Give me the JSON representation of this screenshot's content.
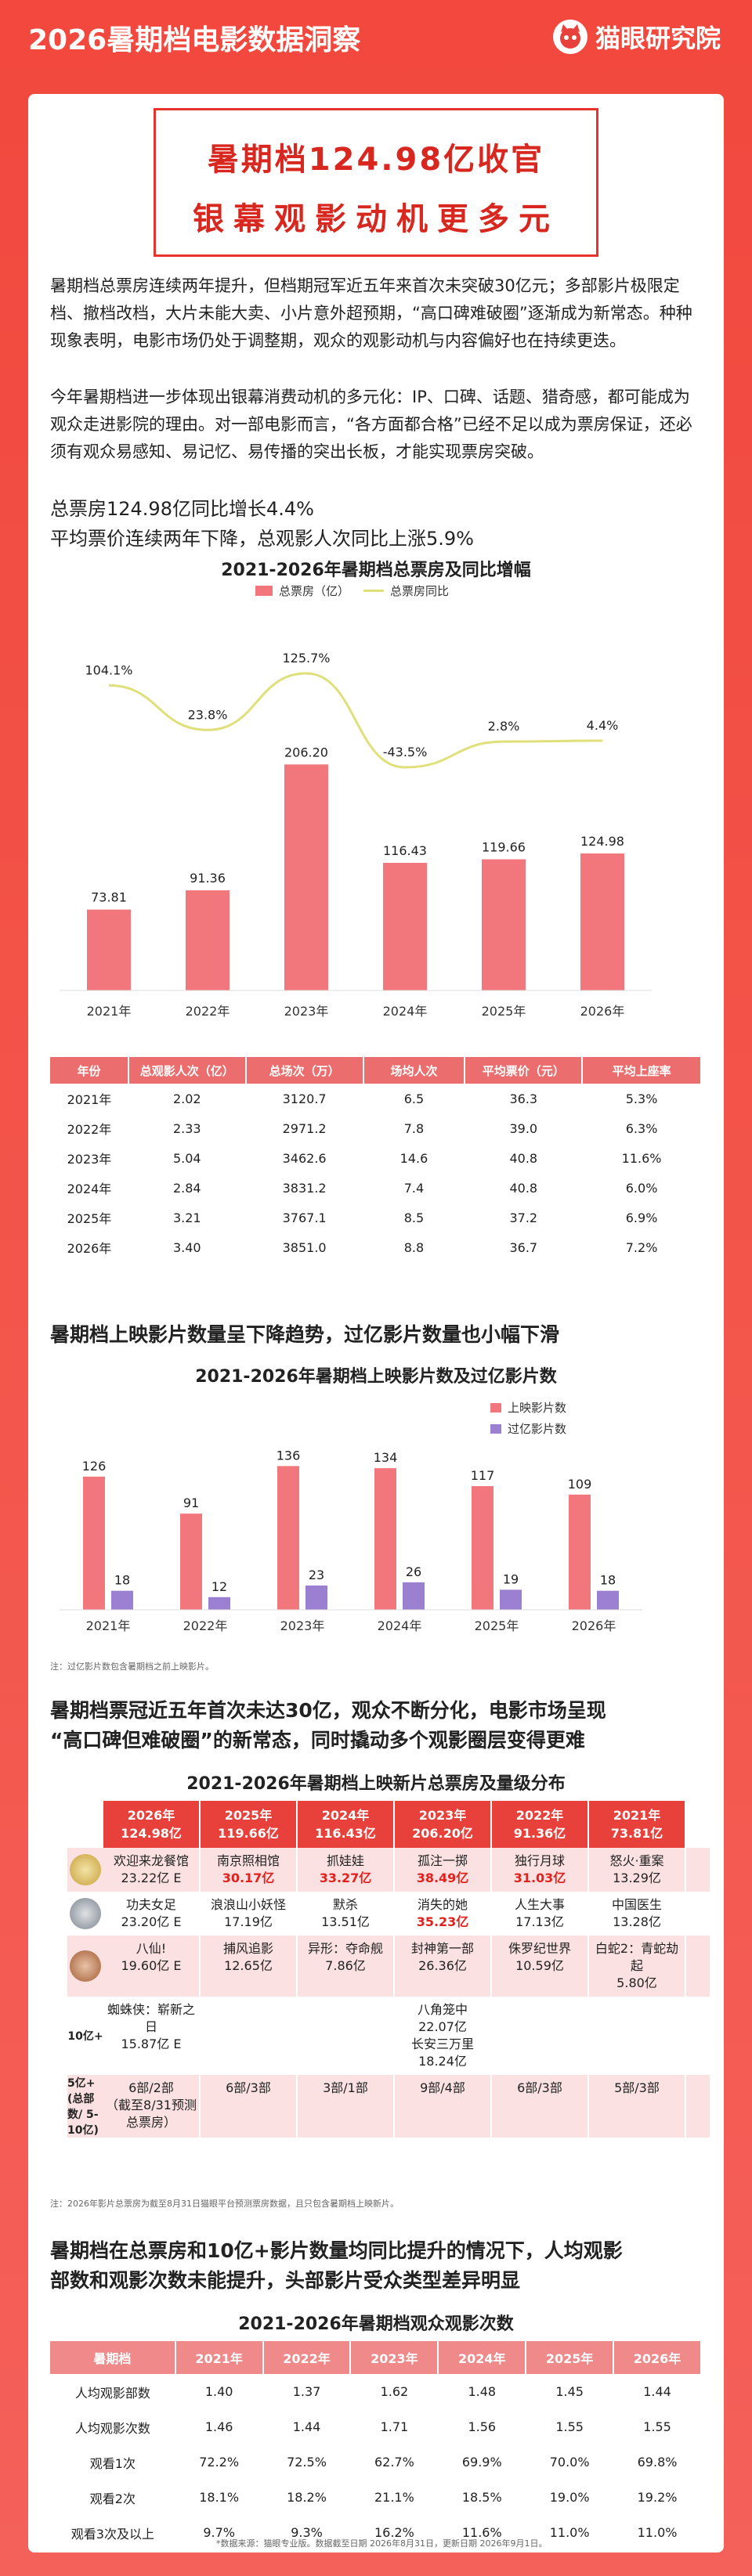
{
  "header": {
    "title": "2026暑期档电影数据洞察",
    "brand": "猫眼研究院"
  },
  "headline": {
    "line1": "暑期档124.98亿收官",
    "line2": "银幕观影动机更多元"
  },
  "intro": {
    "p1": "暑期档总票房连续两年提升，但档期冠军近五年来首次未突破30亿元；多部影片极限定档、撤档改档，大片未能大卖、小片意外超预期，“高口碑难破圈”逐渐成为新常态。种种现象表明，电影市场仍处于调整期，观众的观影动机与内容偏好也在持续更迭。",
    "p2": "今年暑期档进一步体现出银幕消费动机的多元化：IP、口碑、话题、猎奇感，都可能成为观众走进影院的理由。对一部电影而言，“各方面都合格”已经不足以成为票房保证，还必须有观众易感知、易记忆、易传播的突出长板，才能实现票房突破。"
  },
  "stats": {
    "line1": "总票房124.98亿同比增长4.4%",
    "line2": "平均票价连续两年下降，总观影人次同比上涨5.9%"
  },
  "colors": {
    "bar_pink": "#f2777d",
    "bar_purple": "#9b7fd1",
    "line_yellow": "#dfe07a",
    "header_red": "#e8403a"
  },
  "chart_data": [
    {
      "type": "bar",
      "title": "2021-2026年暑期档总票房及同比增幅",
      "categories": [
        "2021年",
        "2022年",
        "2023年",
        "2024年",
        "2025年",
        "2026年"
      ],
      "series": [
        {
          "name": "总票房（亿）",
          "type": "bar",
          "values": [
            73.81,
            91.36,
            206.2,
            116.43,
            119.66,
            124.98
          ],
          "labels": [
            "73.81",
            "91.36",
            "206.20",
            "116.43",
            "119.66",
            "124.98"
          ]
        },
        {
          "name": "总票房同比",
          "type": "line",
          "values": [
            104.1,
            23.8,
            125.7,
            -43.5,
            2.8,
            4.4
          ],
          "labels": [
            "104.1%",
            "23.8%",
            "125.7%",
            "-43.5%",
            "2.8%",
            "4.4%"
          ]
        }
      ],
      "legend": "top-center",
      "grid": false
    },
    {
      "type": "table",
      "columns": [
        "年份",
        "总观影人次（亿）",
        "总场次（万）",
        "场均人次",
        "平均票价（元）",
        "平均上座率"
      ],
      "rows": [
        [
          "2021年",
          "2.02",
          "3120.7",
          "6.5",
          "36.3",
          "5.3%"
        ],
        [
          "2022年",
          "2.33",
          "2971.2",
          "7.8",
          "39.0",
          "6.3%"
        ],
        [
          "2023年",
          "5.04",
          "3462.6",
          "14.6",
          "40.8",
          "11.6%"
        ],
        [
          "2024年",
          "2.84",
          "3831.2",
          "7.4",
          "40.8",
          "6.0%"
        ],
        [
          "2025年",
          "3.21",
          "3767.1",
          "8.5",
          "37.2",
          "6.9%"
        ],
        [
          "2026年",
          "3.40",
          "3851.0",
          "8.8",
          "36.7",
          "7.2%"
        ]
      ]
    },
    {
      "type": "bar",
      "title": "2021-2026年暑期档上映影片数及过亿影片数",
      "categories": [
        "2021年",
        "2022年",
        "2023年",
        "2024年",
        "2025年",
        "2026年"
      ],
      "series": [
        {
          "name": "上映影片数",
          "values": [
            126,
            91,
            136,
            134,
            117,
            109
          ]
        },
        {
          "name": "过亿影片数",
          "values": [
            18,
            12,
            23,
            26,
            19,
            18
          ]
        }
      ],
      "legend": "top-right",
      "grid": false,
      "note": "注：过亿影片数包含暑期档之前上映影片。"
    },
    {
      "type": "table",
      "title": "2021-2026年暑期档上映新片总票房及量级分布",
      "columns": [
        {
          "year": "2026年",
          "total": "124.98亿"
        },
        {
          "year": "2025年",
          "total": "119.66亿"
        },
        {
          "year": "2024年",
          "total": "116.43亿"
        },
        {
          "year": "2023年",
          "total": "206.20亿"
        },
        {
          "year": "2022年",
          "total": "91.36亿"
        },
        {
          "year": "2021年",
          "total": "73.81亿"
        }
      ],
      "rows": [
        {
          "label": "gold",
          "cells": [
            {
              "title": "欢迎来龙餐馆",
              "value": "23.22亿 E",
              "red": false
            },
            {
              "title": "南京照相馆",
              "value": "30.17亿",
              "red": true
            },
            {
              "title": "抓娃娃",
              "value": "33.27亿",
              "red": true
            },
            {
              "title": "孤注一掷",
              "value": "38.49亿",
              "red": true
            },
            {
              "title": "独行月球",
              "value": "31.03亿",
              "red": true
            },
            {
              "title": "怒火·重案",
              "value": "13.29亿",
              "red": false
            }
          ]
        },
        {
          "label": "silver",
          "cells": [
            {
              "title": "功夫女足",
              "value": "23.20亿 E",
              "red": false
            },
            {
              "title": "浪浪山小妖怪",
              "value": "17.19亿",
              "red": false
            },
            {
              "title": "默杀",
              "value": "13.51亿",
              "red": false
            },
            {
              "title": "消失的她",
              "value": "35.23亿",
              "red": true
            },
            {
              "title": "人生大事",
              "value": "17.13亿",
              "red": false
            },
            {
              "title": "中国医生",
              "value": "13.28亿",
              "red": false
            }
          ]
        },
        {
          "label": "bronze",
          "cells": [
            {
              "title": "八仙!",
              "value": "19.60亿 E",
              "red": false
            },
            {
              "title": "捕风追影",
              "value": "12.65亿",
              "red": false
            },
            {
              "title": "异形：夺命舰",
              "value": "7.86亿",
              "red": false
            },
            {
              "title": "封神第一部",
              "value": "26.36亿",
              "red": false
            },
            {
              "title": "侏罗纪世界",
              "value": "10.59亿",
              "red": false
            },
            {
              "title": "白蛇2：青蛇劫起",
              "value": "5.80亿",
              "red": false
            }
          ]
        },
        {
          "label": "10亿+",
          "cells": [
            {
              "title": "蜘蛛侠：崭新之日",
              "value": "15.87亿 E",
              "red": false
            },
            {
              "title": "",
              "value": "",
              "red": false
            },
            {
              "title": "",
              "value": "",
              "red": false
            },
            {
              "title": "八角笼中",
              "value": "22.07亿",
              "red": false,
              "extra_title": "长安三万里",
              "extra_value": "18.24亿"
            },
            {
              "title": "",
              "value": "",
              "red": false
            },
            {
              "title": "",
              "value": "",
              "red": false
            }
          ]
        },
        {
          "label": "5亿+ (总部数/ 5-10亿)",
          "cells": [
            {
              "title": "6部/2部",
              "value": "（截至8/31预测总票房）",
              "red": false
            },
            {
              "title": "6部/3部",
              "value": "",
              "red": false
            },
            {
              "title": "3部/1部",
              "value": "",
              "red": false
            },
            {
              "title": "9部/4部",
              "value": "",
              "red": false
            },
            {
              "title": "6部/3部",
              "value": "",
              "red": false
            },
            {
              "title": "5部/3部",
              "value": "",
              "red": false
            }
          ]
        }
      ],
      "note": "注：2026年影片总票房为截至8月31日猫眼平台预测票房数据，且只包含暑期档上映新片。"
    },
    {
      "type": "table",
      "title": "2021-2026年暑期档观众观影次数",
      "columns": [
        "暑期档",
        "2021年",
        "2022年",
        "2023年",
        "2024年",
        "2025年",
        "2026年"
      ],
      "rows": [
        [
          "人均观影部数",
          "1.40",
          "1.37",
          "1.62",
          "1.48",
          "1.45",
          "1.44"
        ],
        [
          "人均观影次数",
          "1.46",
          "1.44",
          "1.71",
          "1.56",
          "1.55",
          "1.55"
        ],
        [
          "观看1次",
          "72.2%",
          "72.5%",
          "62.7%",
          "69.9%",
          "70.0%",
          "69.8%"
        ],
        [
          "观看2次",
          "18.1%",
          "18.2%",
          "21.1%",
          "18.5%",
          "19.0%",
          "19.2%"
        ],
        [
          "观看3次及以上",
          "9.7%",
          "9.3%",
          "16.2%",
          "11.6%",
          "11.0%",
          "11.0%"
        ]
      ]
    }
  ],
  "section2": {
    "title": "暑期档上映影片数量呈下降趋势，过亿影片数量也小幅下滑"
  },
  "section3": {
    "title_line1": "暑期档票冠近五年首次未达30亿，观众不断分化，电影市场呈现",
    "title_line2": "“高口碑但难破圈”的新常态，同时撬动多个观影圈层变得更难"
  },
  "section4": {
    "title_line1": "暑期档在总票房和10亿+影片数量均同比提升的情况下，人均观影",
    "title_line2": "部数和观影次数未能提升，头部影片受众类型差异明显"
  },
  "footer": {
    "source": "*数据来源：猫眼专业版。数据截至日期 2026年8月31日，更新日期 2026年9月1日。"
  }
}
